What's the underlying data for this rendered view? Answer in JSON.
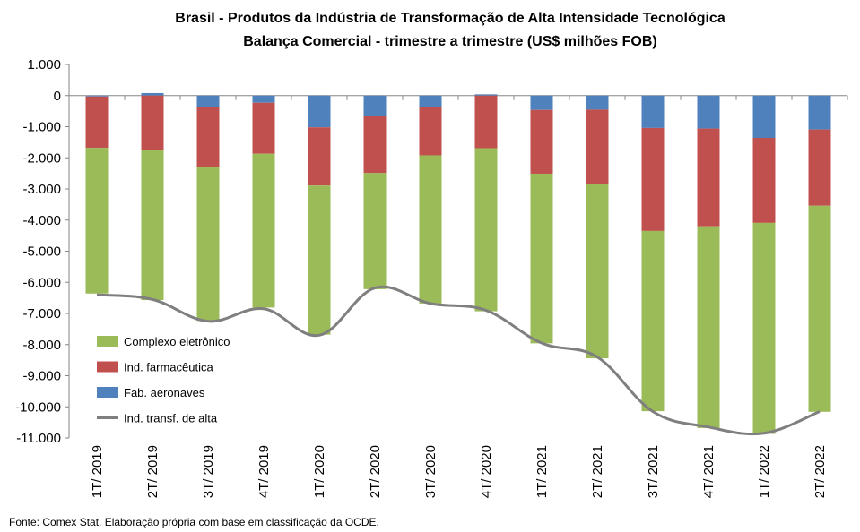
{
  "chart_data": {
    "type": "bar",
    "stacked": true,
    "title": "Brasil - Produtos da Indústria de Transformação  de Alta Intensidade Tecnológica",
    "subtitle": "Balança Comercial - trimestre a trimestre (US$ milhões FOB)",
    "source": "Fonte:  Comex Stat. Elaboração própria com base em classificação da OCDE.",
    "ylim": [
      -11000,
      1000
    ],
    "yticks": [
      1000,
      0,
      -1000,
      -2000,
      -3000,
      -4000,
      -5000,
      -6000,
      -7000,
      -8000,
      -9000,
      -10000,
      -11000
    ],
    "ytick_labels": [
      "1.000",
      "0",
      "-1.000",
      "-2.000",
      "-3.000",
      "-4.000",
      "-5.000",
      "-6.000",
      "-7.000",
      "-8.000",
      "-9.000",
      "-10.000",
      "-11.000"
    ],
    "categories": [
      "1T/ 2019",
      "2T/ 2019",
      "3T/ 2019",
      "4T/ 2019",
      "1T/ 2020",
      "2T/ 2020",
      "3T/ 2020",
      "4T/ 2020",
      "1T/ 2021",
      "2T/ 2021",
      "3T/ 2021",
      "4T/ 2021",
      "1T/ 2022",
      "2T/ 2022"
    ],
    "legend_position": "bottom-left",
    "series": [
      {
        "name": "Fab. aeronaves",
        "kind": "bar",
        "color": "#4F81BD",
        "values": [
          -30,
          80,
          -380,
          -230,
          -1020,
          -650,
          -380,
          40,
          -460,
          -450,
          -1040,
          -1060,
          -1360,
          -1090
        ]
      },
      {
        "name": "Ind. farmacêutica",
        "kind": "bar",
        "color": "#C0504D",
        "values": [
          -1650,
          -1760,
          -1930,
          -1640,
          -1870,
          -1840,
          -1540,
          -1690,
          -2050,
          -2380,
          -3310,
          -3140,
          -2730,
          -2450
        ]
      },
      {
        "name": "Complexo eletrônico",
        "kind": "bar",
        "color": "#9BBB59",
        "values": [
          -4680,
          -4810,
          -4930,
          -4940,
          -4790,
          -3730,
          -4760,
          -5240,
          -5450,
          -5610,
          -5790,
          -6480,
          -6780,
          -6620
        ]
      },
      {
        "name": "Ind. transf. de alta",
        "kind": "line",
        "color": "#7F7F7F",
        "values": [
          -6400,
          -6550,
          -7250,
          -6850,
          -7700,
          -6180,
          -6680,
          -6900,
          -7950,
          -8400,
          -10150,
          -10650,
          -10850,
          -10150
        ]
      }
    ]
  }
}
